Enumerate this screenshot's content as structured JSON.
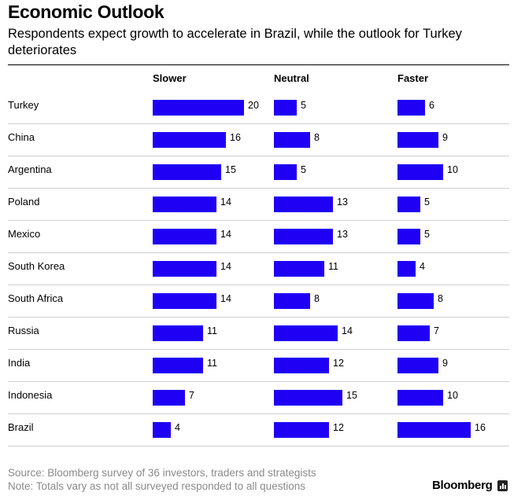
{
  "header": {
    "title": "Economic Outlook",
    "subtitle": "Respondents expect growth to accelerate in Brazil, while the outlook for Turkey deteriorates"
  },
  "chart_data": {
    "type": "bar",
    "orientation": "horizontal",
    "layout": "small-multiples",
    "title": "Economic Outlook",
    "subtitle": "Respondents expect growth to accelerate in Brazil, while the outlook for Turkey deteriorates",
    "categories": [
      "Turkey",
      "China",
      "Argentina",
      "Poland",
      "Mexico",
      "South Korea",
      "South Africa",
      "Russia",
      "India",
      "Indonesia",
      "Brazil"
    ],
    "series": [
      {
        "name": "Slower",
        "values": [
          20,
          16,
          15,
          14,
          14,
          14,
          14,
          11,
          11,
          7,
          4
        ]
      },
      {
        "name": "Neutral",
        "values": [
          5,
          8,
          5,
          13,
          13,
          11,
          8,
          14,
          12,
          15,
          12
        ]
      },
      {
        "name": "Faster",
        "values": [
          6,
          9,
          10,
          5,
          5,
          4,
          8,
          7,
          9,
          10,
          16
        ]
      }
    ],
    "color": "#1f00f5",
    "xlim": [
      0,
      20
    ],
    "xlabel": "",
    "ylabel": "",
    "grid": false,
    "data_labels": true
  },
  "footer": {
    "source": "Source: Bloomberg survey of 36 investors, traders and strategists",
    "note": "Note: Totals vary as not all surveyed responded to all questions",
    "brand": "Bloomberg"
  }
}
